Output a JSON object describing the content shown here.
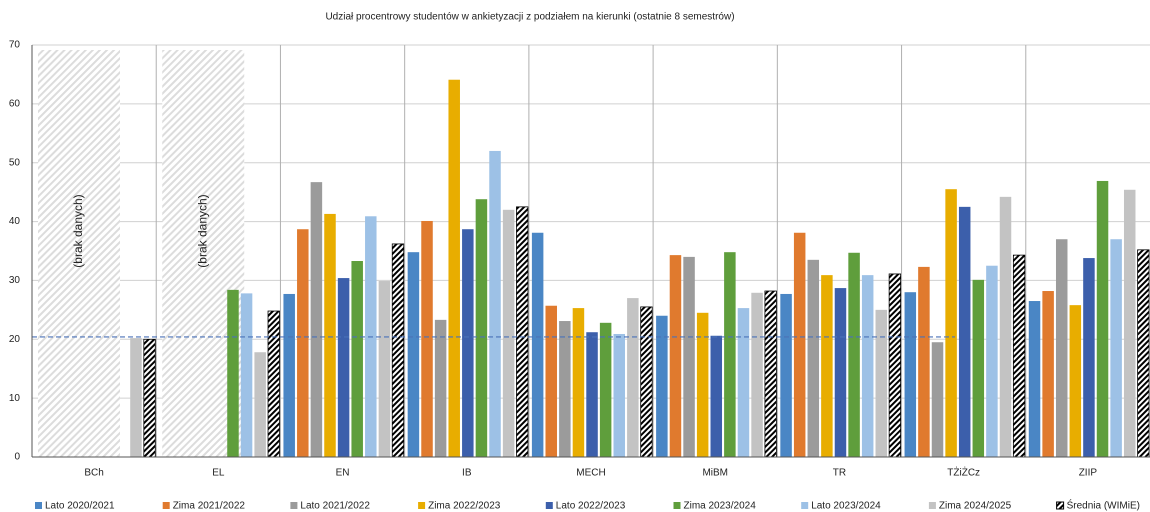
{
  "chart_data": {
    "type": "bar",
    "title": "Udział procentrowy studentów w ankietyzacji z podziałem na kierunki (ostatnie 8 semestrów)",
    "categories": [
      "BCh",
      "EL",
      "EN",
      "IB",
      "MECH",
      "MiBM",
      "TR",
      "TŻiŻCz",
      "ZIIP"
    ],
    "series": [
      {
        "name": "Lato 2020/2021",
        "color": "#4a86c5",
        "values": [
          null,
          null,
          27.7,
          34.8,
          38.1,
          24.0,
          27.7,
          28.0,
          26.5
        ]
      },
      {
        "name": "Zima 2021/2022",
        "color": "#e07a2e",
        "values": [
          null,
          null,
          38.7,
          40.1,
          25.7,
          34.3,
          38.1,
          32.3,
          28.2
        ]
      },
      {
        "name": "Lato 2021/2022",
        "color": "#9b9b9b",
        "values": [
          null,
          null,
          46.7,
          23.3,
          23.1,
          34.0,
          33.5,
          19.5,
          37.0
        ]
      },
      {
        "name": "Zima 2022/2023",
        "color": "#e8ad00",
        "values": [
          null,
          null,
          41.3,
          64.1,
          25.3,
          24.5,
          30.9,
          45.5,
          25.8
        ]
      },
      {
        "name": "Lato 2022/2023",
        "color": "#3c5fab",
        "values": [
          null,
          null,
          30.4,
          38.7,
          21.2,
          20.6,
          28.7,
          42.5,
          33.8
        ]
      },
      {
        "name": "Zima 2023/2024",
        "color": "#5f9e3c",
        "values": [
          null,
          28.4,
          33.3,
          43.8,
          22.8,
          34.8,
          34.7,
          30.1,
          46.9
        ]
      },
      {
        "name": "Lato 2023/2024",
        "color": "#9dc1e6",
        "values": [
          null,
          27.8,
          40.9,
          52.0,
          20.9,
          25.3,
          30.9,
          32.5,
          37.0
        ]
      },
      {
        "name": "Zima 2024/2025",
        "color": "#c3c3c3",
        "values": [
          20.2,
          17.8,
          29.9,
          42.0,
          27.0,
          27.9,
          25.0,
          44.2,
          45.4
        ]
      },
      {
        "name": "Średnia (WIMiE)",
        "color": "#000000",
        "pattern": "hatch",
        "values": [
          20.0,
          24.8,
          36.2,
          42.5,
          25.5,
          28.2,
          31.1,
          34.3,
          35.2
        ]
      }
    ],
    "reference_line": 20.4,
    "annotations": [
      {
        "text": "(brak danych)",
        "category": "BCh"
      },
      {
        "text": "(brak danych)",
        "category": "EL"
      }
    ],
    "ylim": [
      0,
      70
    ],
    "yticks": [
      0,
      10,
      20,
      30,
      40,
      50,
      60,
      70
    ],
    "grid": true,
    "legend": "bottom"
  }
}
